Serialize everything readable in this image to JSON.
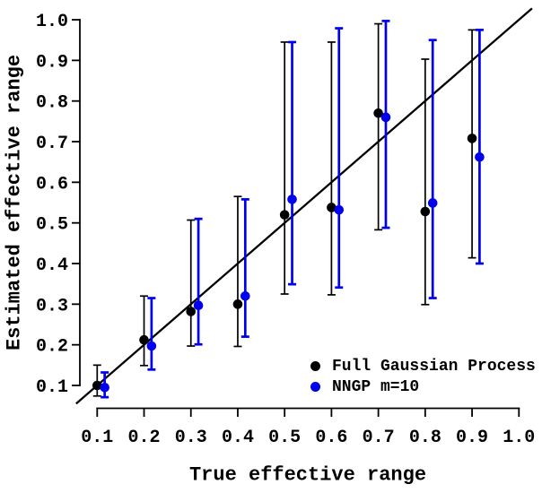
{
  "chart_data": {
    "type": "scatter",
    "title": "",
    "xlabel": "True effective range",
    "ylabel": "Estimated effective range",
    "xlim": [
      0.1,
      1.0
    ],
    "ylim": [
      0.1,
      1.0
    ],
    "xticks": [
      "0.1",
      "0.2",
      "0.3",
      "0.4",
      "0.5",
      "0.6",
      "0.7",
      "0.8",
      "0.9",
      "1.0"
    ],
    "yticks": [
      "0.1",
      "0.2",
      "0.3",
      "0.4",
      "0.5",
      "0.6",
      "0.7",
      "0.8",
      "0.9",
      "1.0"
    ],
    "grid": false,
    "legend_position": "bottom-right-inside",
    "reference_line": {
      "type": "identity",
      "slope": 1,
      "intercept": 0,
      "x_start": 0.055,
      "x_end": 1.028,
      "color": "#000000"
    },
    "error_bars": true,
    "series": [
      {
        "name": "Full Gaussian Process",
        "color": "#000000",
        "marker": "circle",
        "x_offset": 0.0,
        "points": [
          {
            "x": 0.1,
            "y": 0.1,
            "lo": 0.074,
            "hi": 0.15
          },
          {
            "x": 0.2,
            "y": 0.212,
            "lo": 0.149,
            "hi": 0.32
          },
          {
            "x": 0.3,
            "y": 0.282,
            "lo": 0.197,
            "hi": 0.507
          },
          {
            "x": 0.4,
            "y": 0.3,
            "lo": 0.196,
            "hi": 0.565
          },
          {
            "x": 0.5,
            "y": 0.52,
            "lo": 0.325,
            "hi": 0.945
          },
          {
            "x": 0.6,
            "y": 0.538,
            "lo": 0.323,
            "hi": 0.945
          },
          {
            "x": 0.7,
            "y": 0.77,
            "lo": 0.483,
            "hi": 0.99
          },
          {
            "x": 0.8,
            "y": 0.528,
            "lo": 0.299,
            "hi": 0.903
          },
          {
            "x": 0.9,
            "y": 0.708,
            "lo": 0.414,
            "hi": 0.975
          }
        ]
      },
      {
        "name": "NNGP m=10",
        "color": "#0000ee",
        "marker": "circle",
        "x_offset": 0.016,
        "points": [
          {
            "x": 0.1,
            "y": 0.095,
            "lo": 0.071,
            "hi": 0.132
          },
          {
            "x": 0.2,
            "y": 0.197,
            "lo": 0.139,
            "hi": 0.315
          },
          {
            "x": 0.3,
            "y": 0.297,
            "lo": 0.201,
            "hi": 0.51
          },
          {
            "x": 0.4,
            "y": 0.32,
            "lo": 0.22,
            "hi": 0.558
          },
          {
            "x": 0.5,
            "y": 0.558,
            "lo": 0.349,
            "hi": 0.945
          },
          {
            "x": 0.6,
            "y": 0.532,
            "lo": 0.341,
            "hi": 0.979
          },
          {
            "x": 0.7,
            "y": 0.76,
            "lo": 0.488,
            "hi": 0.997
          },
          {
            "x": 0.8,
            "y": 0.549,
            "lo": 0.315,
            "hi": 0.95
          },
          {
            "x": 0.9,
            "y": 0.662,
            "lo": 0.4,
            "hi": 0.975
          }
        ]
      }
    ]
  }
}
